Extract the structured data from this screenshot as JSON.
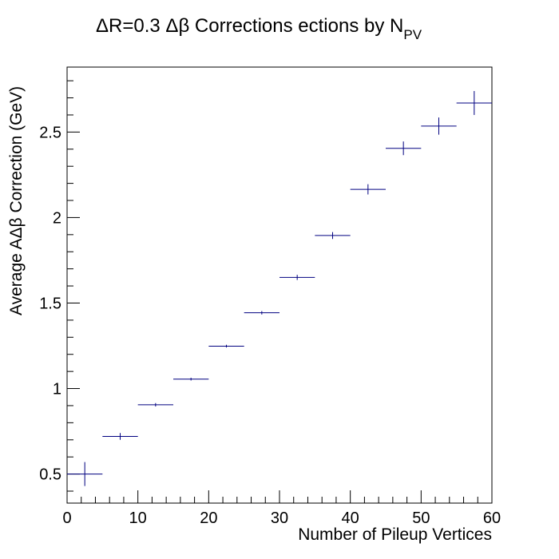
{
  "chart_data": {
    "type": "scatter",
    "title": "ΔR=0.3 Δβ Corrections ections by N",
    "title_subscript": "PV",
    "xlabel": "Number of Pileup Vertices",
    "ylabel": "Average AΔβ Correction (GeV)",
    "xlim": [
      0,
      60
    ],
    "ylim": [
      0.33,
      2.88
    ],
    "x_ticks": [
      0,
      10,
      20,
      30,
      40,
      50,
      60
    ],
    "x_tick_labels": [
      "0",
      "10",
      "20",
      "30",
      "40",
      "50",
      "60"
    ],
    "y_ticks": [
      0.5,
      1,
      1.5,
      2,
      2.5
    ],
    "y_tick_labels": [
      "0.5",
      "1",
      "1.5",
      "2",
      "2.5"
    ],
    "grid": false,
    "marker_color": "#000080",
    "points": [
      {
        "x": 2.5,
        "x_err": 2.5,
        "y": 0.5,
        "y_err": 0.07
      },
      {
        "x": 7.5,
        "x_err": 2.5,
        "y": 0.72,
        "y_err": 0.02
      },
      {
        "x": 12.5,
        "x_err": 2.5,
        "y": 0.905,
        "y_err": 0.01
      },
      {
        "x": 17.5,
        "x_err": 2.5,
        "y": 1.055,
        "y_err": 0.008
      },
      {
        "x": 22.5,
        "x_err": 2.5,
        "y": 1.248,
        "y_err": 0.008
      },
      {
        "x": 27.5,
        "x_err": 2.5,
        "y": 1.443,
        "y_err": 0.01
      },
      {
        "x": 32.5,
        "x_err": 2.5,
        "y": 1.65,
        "y_err": 0.015
      },
      {
        "x": 37.5,
        "x_err": 2.5,
        "y": 1.895,
        "y_err": 0.02
      },
      {
        "x": 42.5,
        "x_err": 2.5,
        "y": 2.165,
        "y_err": 0.03
      },
      {
        "x": 47.5,
        "x_err": 2.5,
        "y": 2.405,
        "y_err": 0.04
      },
      {
        "x": 52.5,
        "x_err": 2.5,
        "y": 2.535,
        "y_err": 0.05
      },
      {
        "x": 57.5,
        "x_err": 2.5,
        "y": 2.67,
        "y_err": 0.07
      }
    ]
  }
}
